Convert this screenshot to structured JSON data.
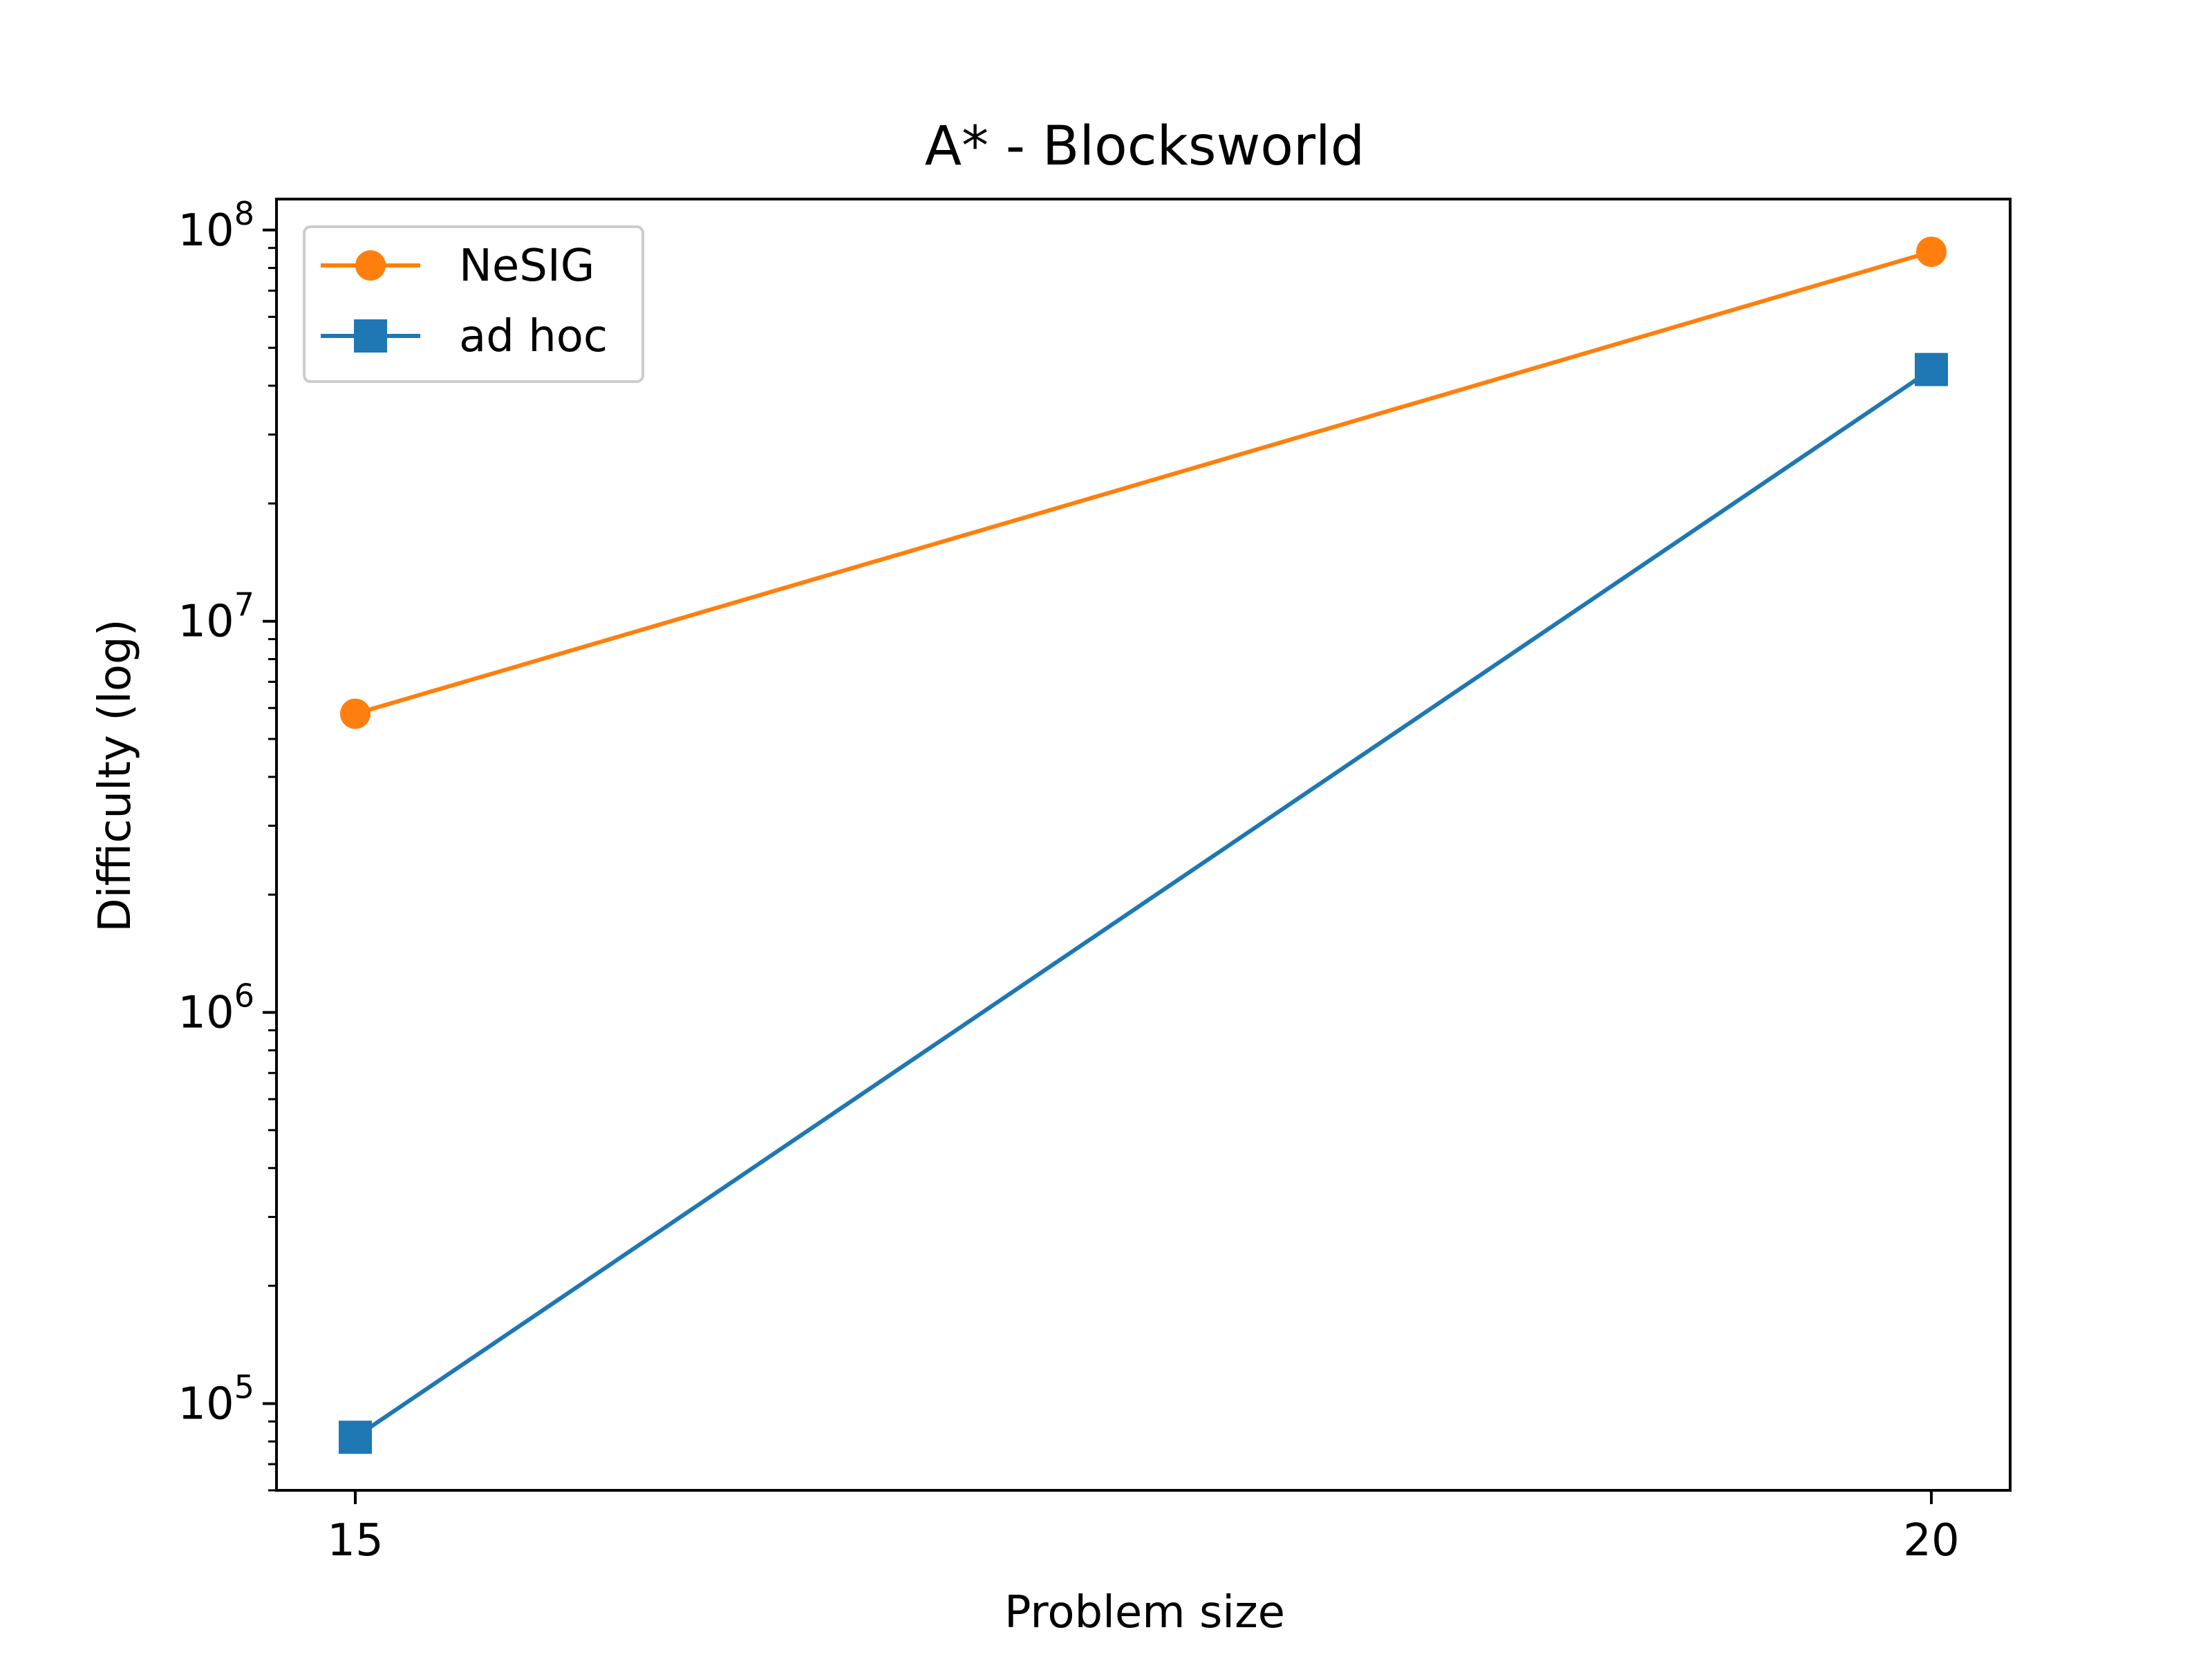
{
  "chart_data": {
    "type": "line",
    "title": "A* - Blocksworld",
    "xlabel": "Problem size",
    "ylabel": "Difficulty (log)",
    "yscale": "log",
    "xticks": [
      15,
      20
    ],
    "xtick_labels": [
      "15",
      "20"
    ],
    "yticks": [
      100000,
      1000000,
      10000000,
      100000000
    ],
    "ytick_labels": [
      {
        "base": "10",
        "exp": "5"
      },
      {
        "base": "10",
        "exp": "6"
      },
      {
        "base": "10",
        "exp": "7"
      },
      {
        "base": "10",
        "exp": "8"
      }
    ],
    "xlim": [
      14.75,
      20.25
    ],
    "ylim": [
      60000,
      120000000
    ],
    "grid": false,
    "legend_position": "upper-left",
    "x": [
      15,
      20
    ],
    "series": [
      {
        "name": "NeSIG",
        "values": [
          5800000,
          88000000
        ],
        "color": "#ff7f0e",
        "marker": "circle"
      },
      {
        "name": "ad hoc",
        "values": [
          82000,
          44000000
        ],
        "color": "#1f77b4",
        "marker": "square"
      }
    ]
  }
}
